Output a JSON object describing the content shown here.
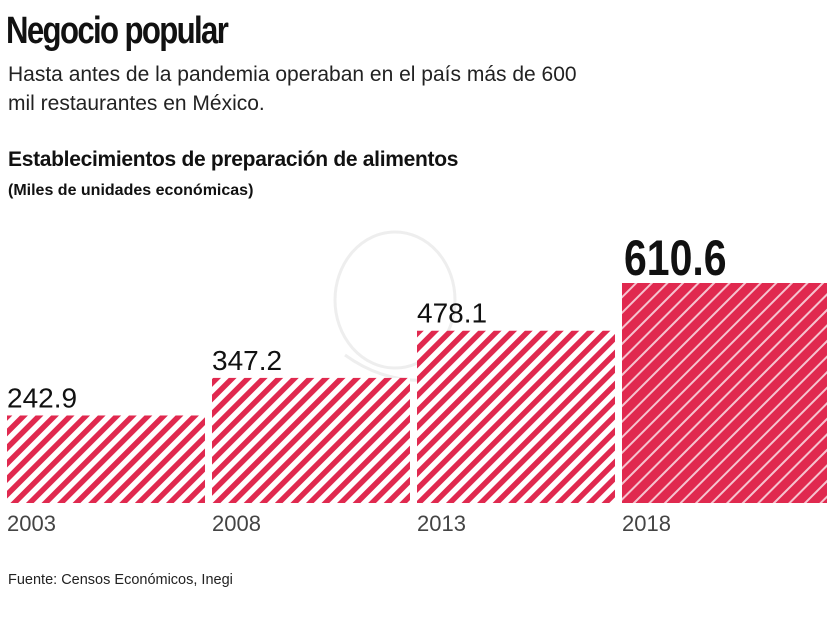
{
  "header": {
    "title": "Negocio popular",
    "subtitle": "Hasta antes de la pandemia operaban en el país más de 600 mil restaurantes en México."
  },
  "chart_data": {
    "type": "bar",
    "title": "Establecimientos de preparación de alimentos",
    "subtitle": "(Miles de unidades económicas)",
    "categories": [
      "2003",
      "2008",
      "2013",
      "2018"
    ],
    "values": [
      242.9,
      347.2,
      478.1,
      610.6
    ],
    "data_labels": [
      "242.9",
      "347.2",
      "478.1",
      "610.6"
    ],
    "ylim": [
      0,
      610.6
    ],
    "grid": false,
    "color": "#e0294f",
    "highlight_index": 3
  },
  "footer": {
    "source": "Fuente: Censos Económicos, Inegi"
  }
}
